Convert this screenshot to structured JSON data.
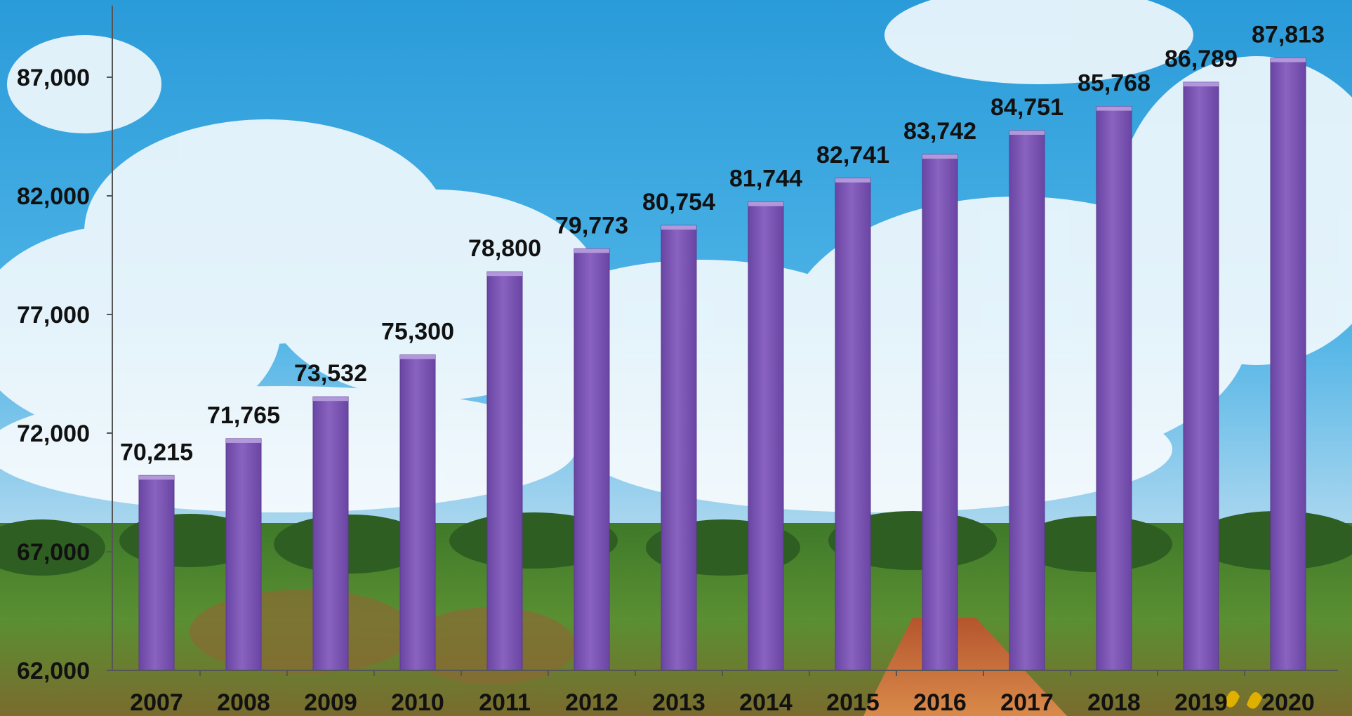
{
  "chart_data": {
    "type": "bar",
    "categories": [
      "2007",
      "2008",
      "2009",
      "2010",
      "2011",
      "2012",
      "2013",
      "2014",
      "2015",
      "2016",
      "2017",
      "2018",
      "2019",
      "2020"
    ],
    "values": [
      70215,
      71765,
      73532,
      75300,
      78800,
      79773,
      80754,
      81744,
      82741,
      83742,
      84751,
      85768,
      86789,
      87813
    ],
    "data_labels": [
      "70,215",
      "71,765",
      "73,532",
      "75,300",
      "78,800",
      "79,773",
      "80,754",
      "81,744",
      "82,741",
      "83,742",
      "84,751",
      "85,768",
      "86,789",
      "87,813"
    ],
    "y_ticks": [
      62000,
      67000,
      72000,
      77000,
      82000,
      87000
    ],
    "y_tick_labels": [
      "62,000",
      "67,000",
      "72,000",
      "77,000",
      "82,000",
      "87,000"
    ],
    "ylim": [
      62000,
      87000
    ],
    "grid": false,
    "title": "",
    "xlabel": "",
    "ylabel": "",
    "bar_color": "#8a63c0"
  }
}
